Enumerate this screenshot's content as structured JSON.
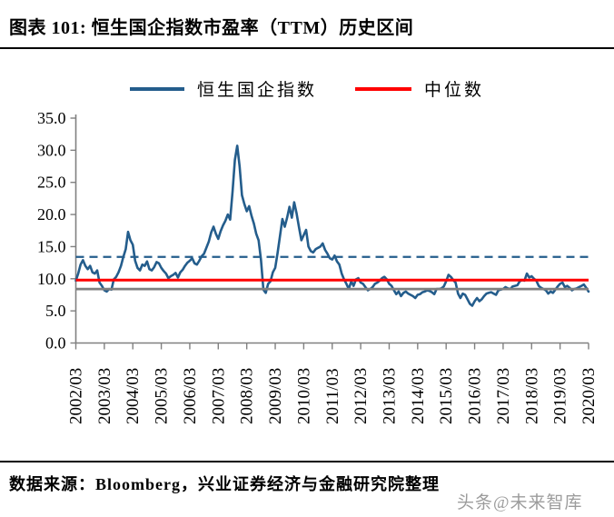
{
  "header": {
    "title": "图表 101:  恒生国企指数市盈率（TTM）历史区间"
  },
  "legend": [
    {
      "label": "恒生国企指数",
      "color": "#245D8C",
      "style": "solid"
    },
    {
      "label": "中位数",
      "color": "#FF0000",
      "style": "solid"
    }
  ],
  "chart_data": {
    "type": "line",
    "title": "恒生国企指数市盈率（TTM）历史区间",
    "xlabel": "",
    "ylabel": "",
    "ylim": [
      0,
      35
    ],
    "grid": false,
    "legend_position": "top",
    "axis_color": "#808080",
    "x_start": "2002/03",
    "x_end": "2020/03",
    "x_frequency": "monthly",
    "xticks": [
      "2002/03",
      "2003/03",
      "2004/03",
      "2005/03",
      "2006/03",
      "2007/03",
      "2008/03",
      "2009/03",
      "2010/03",
      "2011/03",
      "2012/03",
      "2013/03",
      "2014/03",
      "2015/03",
      "2016/03",
      "2017/03",
      "2018/03",
      "2019/03",
      "2020/03"
    ],
    "yticks": [
      "0.0",
      "5.0",
      "10.0",
      "15.0",
      "20.0",
      "25.0",
      "30.0",
      "35.0"
    ],
    "series": [
      {
        "name": "恒生国企指数",
        "color": "#245D8C",
        "values": [
          9.7,
          10.8,
          12.2,
          12.9,
          12.0,
          11.5,
          12.0,
          11.0,
          10.8,
          11.3,
          9.4,
          8.9,
          8.2,
          8.0,
          8.4,
          8.3,
          9.9,
          10.3,
          11.0,
          12.0,
          13.4,
          14.6,
          17.3,
          16.0,
          15.3,
          12.8,
          11.7,
          11.3,
          12.2,
          12.0,
          12.7,
          11.5,
          11.3,
          11.8,
          12.6,
          12.4,
          11.7,
          11.2,
          10.8,
          10.1,
          10.4,
          10.6,
          10.9,
          10.2,
          11.0,
          11.4,
          12.0,
          12.5,
          12.8,
          13.2,
          12.4,
          12.2,
          12.8,
          13.5,
          13.9,
          14.8,
          15.8,
          17.2,
          18.1,
          17.0,
          16.2,
          17.4,
          18.3,
          19.0,
          20.0,
          19.2,
          23.5,
          28.5,
          30.7,
          27.5,
          23.0,
          21.6,
          20.5,
          21.3,
          19.8,
          18.6,
          17.0,
          16.0,
          13.0,
          8.3,
          7.8,
          9.2,
          9.6,
          11.0,
          11.7,
          14.0,
          16.7,
          19.3,
          18.1,
          19.5,
          21.2,
          19.5,
          21.9,
          20.2,
          18.0,
          16.0,
          16.8,
          17.6,
          15.0,
          14.3,
          14.1,
          14.6,
          14.8,
          15.0,
          15.5,
          14.5,
          13.9,
          13.2,
          13.0,
          13.6,
          12.7,
          12.2,
          10.8,
          9.9,
          9.2,
          8.4,
          9.6,
          8.9,
          9.9,
          10.1,
          9.4,
          9.2,
          8.7,
          8.2,
          8.4,
          8.7,
          9.2,
          9.4,
          9.7,
          10.1,
          10.3,
          9.9,
          9.2,
          8.9,
          8.2,
          7.6,
          8.0,
          7.3,
          7.8,
          8.0,
          7.7,
          7.5,
          7.3,
          7.0,
          7.5,
          7.6,
          7.9,
          8.0,
          8.2,
          8.1,
          7.9,
          7.6,
          8.4,
          8.4,
          8.5,
          8.8,
          9.6,
          10.6,
          10.3,
          9.8,
          9.4,
          7.7,
          7.0,
          7.7,
          7.5,
          6.8,
          6.1,
          5.8,
          6.5,
          7.0,
          6.5,
          6.8,
          7.3,
          7.7,
          7.8,
          7.9,
          7.7,
          7.5,
          8.2,
          8.3,
          8.4,
          8.7,
          8.5,
          8.4,
          8.8,
          8.9,
          9.0,
          9.6,
          9.8,
          9.7,
          10.8,
          10.2,
          10.4,
          10.0,
          9.7,
          8.9,
          8.6,
          8.4,
          8.2,
          7.7,
          8.0,
          7.8,
          8.3,
          8.8,
          9.2,
          9.4,
          8.7,
          8.9,
          8.6,
          8.2,
          8.4,
          8.5,
          8.7,
          8.9,
          9.1,
          8.6,
          8.0
        ]
      }
    ],
    "reference_lines": [
      {
        "name": "中位数",
        "value": 9.8,
        "color": "#FF0000",
        "style": "solid"
      },
      {
        "name": "dashed-upper-band",
        "value": 13.4,
        "color": "#245D8C",
        "style": "dashed"
      },
      {
        "name": "gray-lower-band",
        "value": 8.4,
        "color": "#7F7F7F",
        "style": "solid"
      }
    ]
  },
  "footer": {
    "source": "数据来源：Bloomberg，兴业证券经济与金融研究院整理"
  },
  "watermark": {
    "text": "头条@未来智库"
  }
}
